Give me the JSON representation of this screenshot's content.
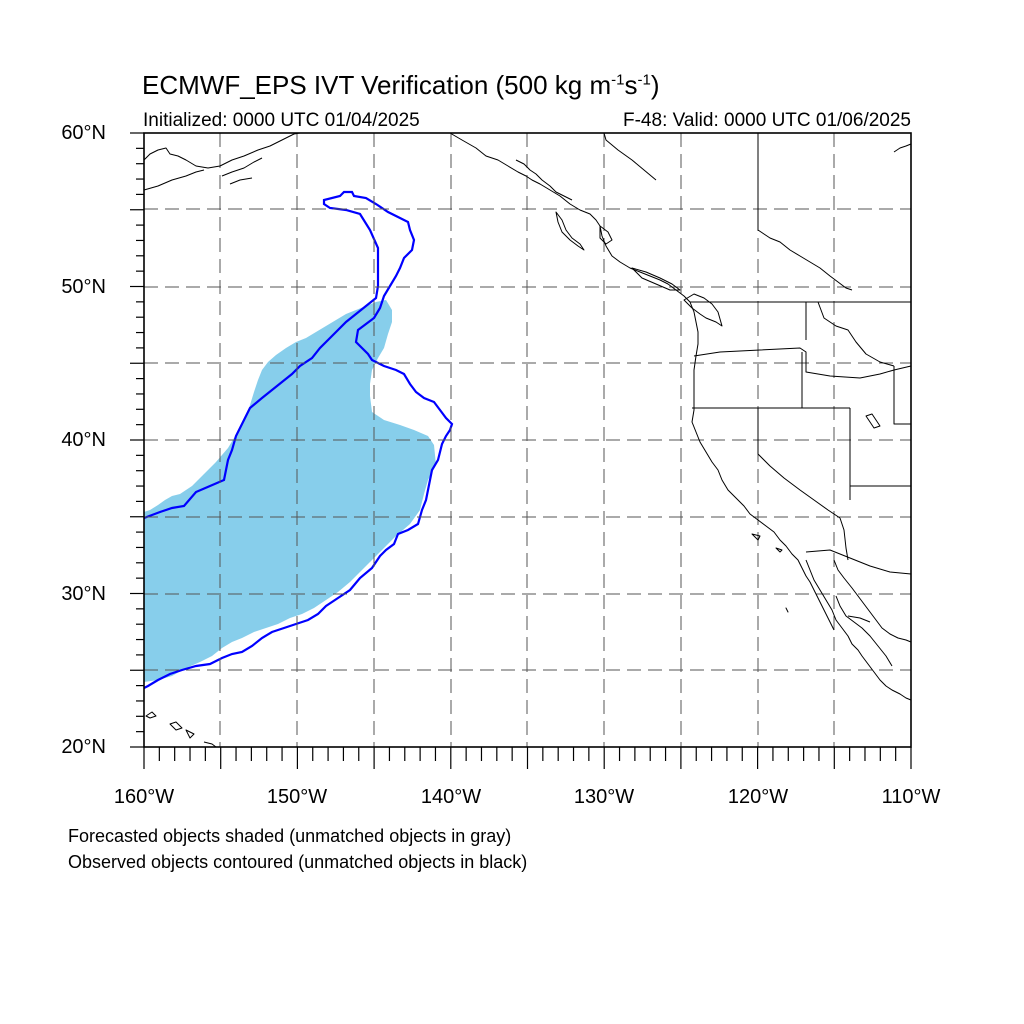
{
  "header": {
    "title_main": "ECMWF_EPS IVT Verification (500 kg m",
    "title_exp1": "-1",
    "title_mid": "s",
    "title_exp2": "-1",
    "title_end": ")",
    "initialized": "Initialized: 0000 UTC 01/04/2025",
    "valid": "F-48: Valid: 0000 UTC 01/06/2025"
  },
  "map": {
    "lon_range": [
      -160,
      -110
    ],
    "lat_range": [
      20,
      60
    ],
    "lat_ticks": [
      "20°N",
      "30°N",
      "40°N",
      "50°N",
      "60°N"
    ],
    "lon_ticks": [
      "160°W",
      "150°W",
      "140°W",
      "130°W",
      "120°W",
      "110°W"
    ],
    "grid": "dashed every 5°",
    "colors": {
      "forecast_fill": "#87ceeb",
      "observed_contour": "#0000ff",
      "coastline": "#000000",
      "gridline": "#555555"
    }
  },
  "footer": {
    "line1": "Forecasted objects shaded (unmatched objects in gray)",
    "line2": "Observed objects contoured (unmatched objects in black)"
  }
}
